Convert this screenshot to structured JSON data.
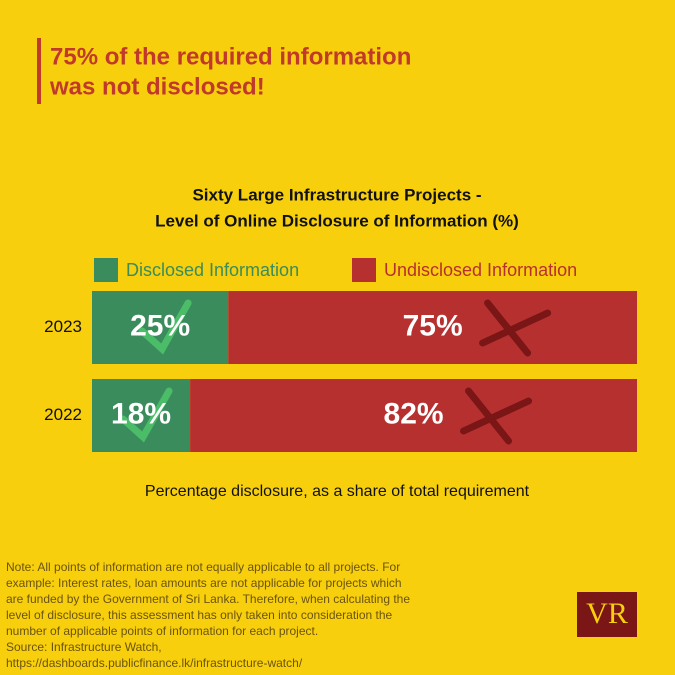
{
  "headline": [
    "75% of the required information",
    "was not disclosed!"
  ],
  "chart_data": {
    "type": "bar",
    "orientation": "horizontal",
    "stacked": true,
    "title": [
      "Sixty Large Infrastructure Projects -",
      "Level of Online Disclosure of Information (%)"
    ],
    "x_label": "Percentage disclosure, as a share of total requirement",
    "categories": [
      "2023",
      "2022"
    ],
    "xlim": [
      0,
      100
    ],
    "series": [
      {
        "name": "Disclosed Information",
        "color": "#3a8c5c",
        "values": [
          25,
          18
        ],
        "value_labels": [
          "25%",
          "18%"
        ]
      },
      {
        "name": "Undisclosed Information",
        "color": "#b73030",
        "values": [
          75,
          82
        ],
        "value_labels": [
          "75%",
          "82%"
        ]
      }
    ]
  },
  "note": [
    "Note: All points of information are not equally applicable to all projects. For",
    "example: Interest rates, loan amounts are not applicable for projects which",
    "are funded by the Government of Sri Lanka. Therefore, when calculating the",
    "level of disclosure, this assessment has only taken into consideration the",
    "number of applicable points of information for each project.",
    "Source: Infrastructure Watch,",
    "https://dashboards.publicfinance.lk/infrastructure-watch/"
  ],
  "logo": "VR"
}
